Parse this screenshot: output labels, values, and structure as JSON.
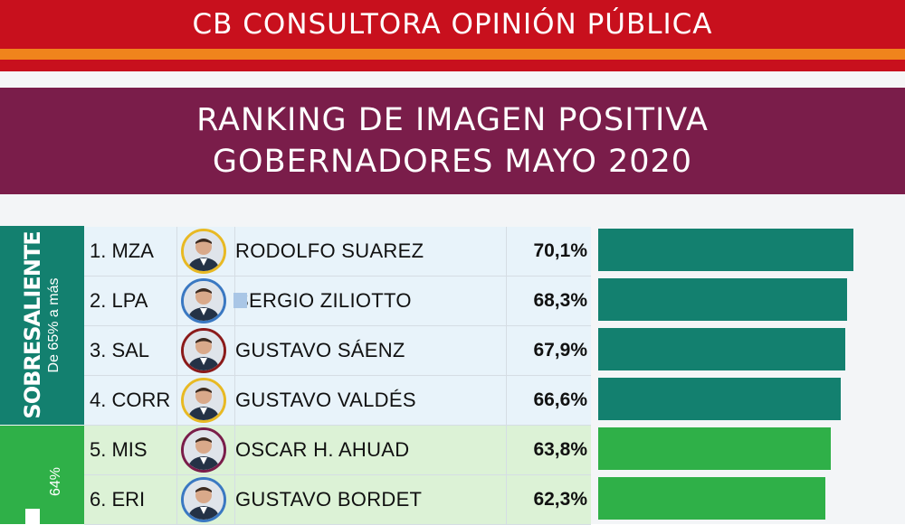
{
  "header": {
    "company": "CB CONSULTORA OPINIÓN PÚBLICA",
    "title_line1": "RANKING DE IMAGEN POSITIVA",
    "title_line2": "GOBERNADORES MAYO 2020"
  },
  "categories": [
    {
      "name": "SOBRESALIENTE",
      "range": "De 65% a más",
      "color": "#13806f"
    },
    {
      "name": "",
      "range": "64%",
      "color": "#2fb048"
    }
  ],
  "chart_data": {
    "type": "bar",
    "orientation": "horizontal",
    "title": "RANKING DE IMAGEN POSITIVA GOBERNADORES MAYO 2020",
    "xlim": [
      0,
      75
    ],
    "rows": [
      {
        "rank": "1. MZA",
        "name": "RODOLFO SUAREZ",
        "value": 70.1,
        "label": "70,1%",
        "tier": 1,
        "ring": "#e8b923"
      },
      {
        "rank": "2. LPA",
        "name": "SERGIO ZILIOTTO",
        "value": 68.3,
        "label": "68,3%",
        "tier": 1,
        "ring": "#3a78c2"
      },
      {
        "rank": "3. SAL",
        "name": "GUSTAVO SÁENZ",
        "value": 67.9,
        "label": "67,9%",
        "tier": 1,
        "ring": "#8b1a1a"
      },
      {
        "rank": "4. CORR",
        "name": "GUSTAVO VALDÉS",
        "value": 66.6,
        "label": "66,6%",
        "tier": 1,
        "ring": "#e8b923"
      },
      {
        "rank": "5. MIS",
        "name": "OSCAR H. AHUAD",
        "value": 63.8,
        "label": "63,8%",
        "tier": 2,
        "ring": "#7a1d4a"
      },
      {
        "rank": "6. ERI",
        "name": "GUSTAVO BORDET",
        "value": 62.3,
        "label": "62,3%",
        "tier": 2,
        "ring": "#3a78c2"
      }
    ],
    "colors": {
      "tier1": "#13806f",
      "tier2": "#2fb048"
    }
  }
}
